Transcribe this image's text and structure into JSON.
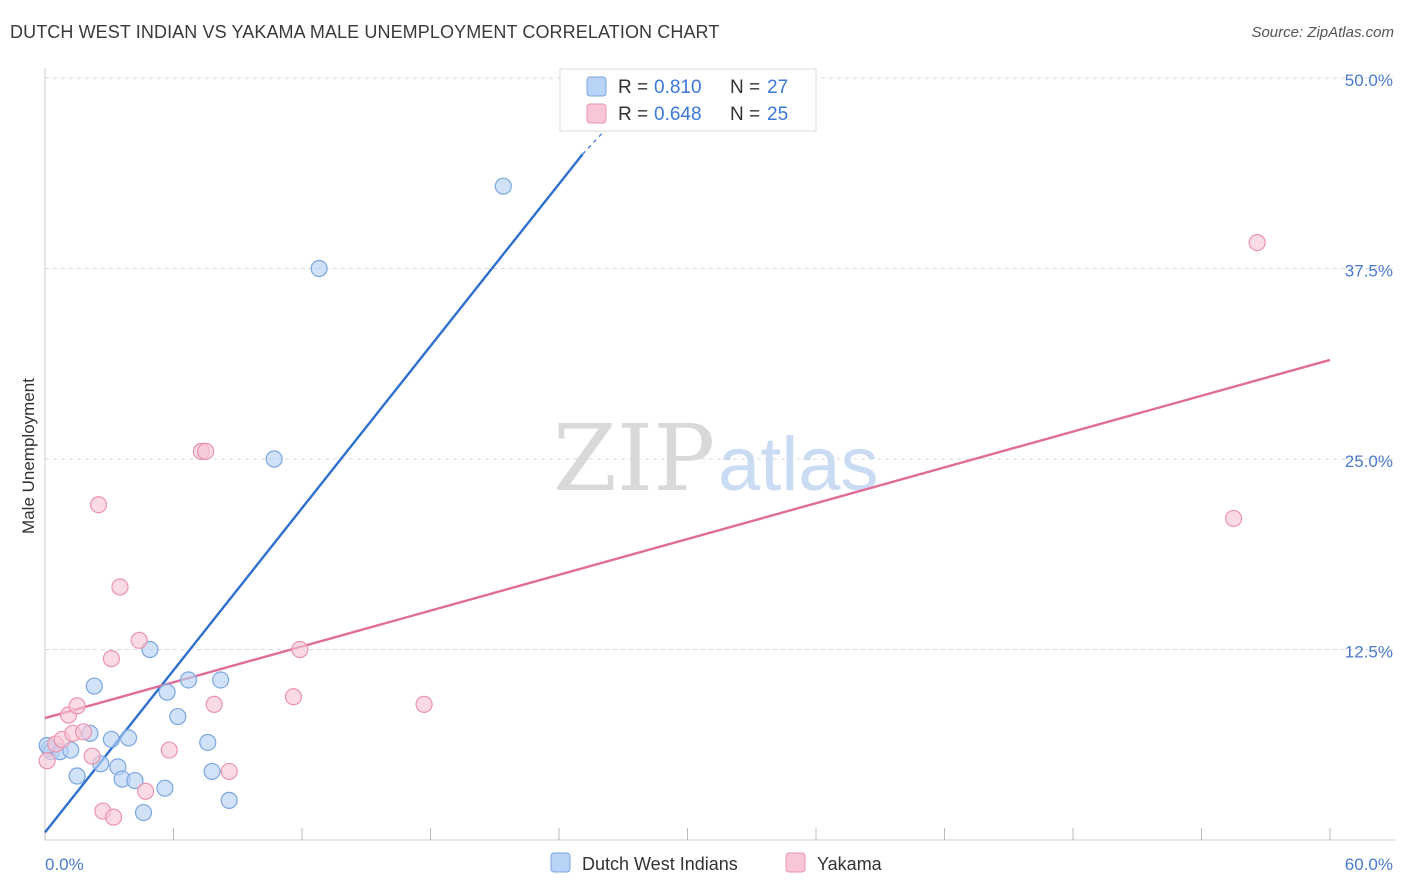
{
  "title": "DUTCH WEST INDIAN VS YAKAMA MALE UNEMPLOYMENT CORRELATION CHART",
  "source": "Source: ZipAtlas.com",
  "watermark": {
    "zip": "ZIP",
    "atlas": "atlas"
  },
  "colors": {
    "blue_fill": "#b8d3f5",
    "blue_stroke": "#7aa6e0",
    "blue_line": "#2f6fcf",
    "pink_fill": "#f8c6d5",
    "pink_stroke": "#eb94b0",
    "pink_line": "#e06d97",
    "grid": "#d8d8d8",
    "tick_text": "#4a7bc8"
  },
  "legend": {
    "r_label": "R =",
    "n_label": "N =",
    "rows": [
      {
        "series": "Dutch West Indians",
        "r": "0.810",
        "n": "27"
      },
      {
        "series": "Yakama",
        "r": "0.648",
        "n": "25"
      }
    ]
  },
  "chart_data": {
    "type": "scatter",
    "title": "DUTCH WEST INDIAN VS YAKAMA MALE UNEMPLOYMENT CORRELATION CHART",
    "xlabel": "",
    "ylabel": "Male Unemployment",
    "xlim": [
      0,
      60
    ],
    "ylim": [
      0,
      50
    ],
    "x_tick_labels": [
      "0.0%",
      "60.0%"
    ],
    "y_ticks": [
      12.5,
      25.0,
      37.5,
      50.0
    ],
    "y_tick_labels": [
      "12.5%",
      "25.0%",
      "37.5%",
      "50.0%"
    ],
    "grid": true,
    "legend_position": "top-center",
    "series": [
      {
        "name": "Dutch West Indians",
        "r": 0.81,
        "n": 27,
        "color": "#b8d3f5",
        "points": [
          [
            0.2,
            6.0
          ],
          [
            0.3,
            5.8
          ],
          [
            0.7,
            5.8
          ],
          [
            1.2,
            5.9
          ],
          [
            1.5,
            4.2
          ],
          [
            2.1,
            7.0
          ],
          [
            2.3,
            10.1
          ],
          [
            2.6,
            5.0
          ],
          [
            3.1,
            6.6
          ],
          [
            3.4,
            4.8
          ],
          [
            3.6,
            4.0
          ],
          [
            3.9,
            6.7
          ],
          [
            4.2,
            3.9
          ],
          [
            4.6,
            1.8
          ],
          [
            4.9,
            12.5
          ],
          [
            5.6,
            3.4
          ],
          [
            5.7,
            9.7
          ],
          [
            6.2,
            8.1
          ],
          [
            6.7,
            10.5
          ],
          [
            7.6,
            6.4
          ],
          [
            7.8,
            4.5
          ],
          [
            8.2,
            10.5
          ],
          [
            8.6,
            2.6
          ],
          [
            10.7,
            25.0
          ],
          [
            12.8,
            37.5
          ],
          [
            21.4,
            42.9
          ],
          [
            0.1,
            6.2
          ]
        ],
        "trendline": {
          "x": [
            0,
            25.1
          ],
          "y": [
            0.5,
            45.0
          ],
          "dashed_extension_x": [
            25.1,
            26.5
          ],
          "dashed_extension_y": [
            45.0,
            47.1
          ]
        }
      },
      {
        "name": "Yakama",
        "r": 0.648,
        "n": 25,
        "color": "#f8c6d5",
        "points": [
          [
            0.1,
            5.2
          ],
          [
            0.5,
            6.3
          ],
          [
            0.8,
            6.6
          ],
          [
            1.1,
            8.2
          ],
          [
            1.3,
            7.0
          ],
          [
            1.5,
            8.8
          ],
          [
            1.8,
            7.1
          ],
          [
            2.2,
            5.5
          ],
          [
            2.5,
            22.0
          ],
          [
            2.7,
            1.9
          ],
          [
            3.1,
            11.9
          ],
          [
            3.2,
            1.5
          ],
          [
            3.5,
            16.6
          ],
          [
            4.4,
            13.1
          ],
          [
            4.7,
            3.2
          ],
          [
            5.8,
            5.9
          ],
          [
            7.3,
            25.5
          ],
          [
            7.5,
            25.5
          ],
          [
            7.9,
            8.9
          ],
          [
            8.6,
            4.5
          ],
          [
            11.6,
            9.4
          ],
          [
            11.9,
            12.5
          ],
          [
            17.7,
            8.9
          ],
          [
            55.5,
            21.1
          ],
          [
            56.6,
            39.2
          ]
        ],
        "trendline": {
          "x": [
            0,
            60
          ],
          "y": [
            8.0,
            31.5
          ]
        }
      }
    ]
  },
  "bottom_legend": [
    {
      "label": "Dutch West Indians"
    },
    {
      "label": "Yakama"
    }
  ]
}
